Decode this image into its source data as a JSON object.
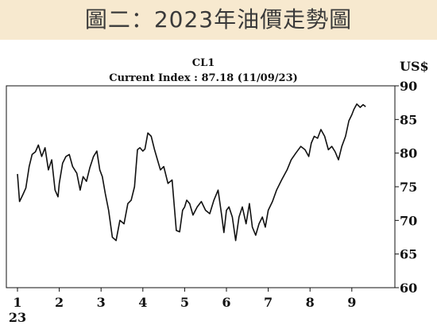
{
  "banner": {
    "title": "圖二：2023年油價走勢圖",
    "background": "#f7e9cf"
  },
  "chart_data": {
    "type": "line",
    "title": "CL1",
    "subtitle": "Current Index : 87.18 (11/09/23)",
    "ylabel": "US$",
    "xlabel": "",
    "ylim": [
      60,
      90
    ],
    "yticks": [
      60,
      65,
      70,
      75,
      80,
      85,
      90
    ],
    "xlim": [
      1,
      10.33
    ],
    "xticks": [
      "1",
      "2",
      "3",
      "4",
      "5",
      "6",
      "7",
      "8",
      "9"
    ],
    "xtick_sublabel": "23",
    "grid": false,
    "line_color": "#111111",
    "series": [
      {
        "x": [
          1.0,
          1.05,
          1.12,
          1.2,
          1.28,
          1.35,
          1.43,
          1.5,
          1.58,
          1.66,
          1.74,
          1.82,
          1.9,
          1.97,
          2.0,
          2.08,
          2.16,
          2.24,
          2.32,
          2.42,
          2.5,
          2.57,
          2.65,
          2.73,
          2.82,
          2.9,
          2.97,
          3.03,
          3.1,
          3.18,
          3.27,
          3.36,
          3.45,
          3.55,
          3.64,
          3.72,
          3.8,
          3.87,
          3.93,
          4.0,
          4.05,
          4.12,
          4.2,
          4.28,
          4.35,
          4.42,
          4.5,
          4.6,
          4.7,
          4.8,
          4.88,
          4.95,
          5.0,
          5.05,
          5.12,
          5.2,
          5.3,
          5.4,
          5.5,
          5.6,
          5.7,
          5.8,
          5.88,
          5.94,
          6.0,
          6.06,
          6.14,
          6.22,
          6.3,
          6.38,
          6.47,
          6.55,
          6.62,
          6.7,
          6.78,
          6.86,
          6.93,
          7.0,
          7.1,
          7.2,
          7.32,
          7.45,
          7.55,
          7.66,
          7.78,
          7.88,
          7.97,
          8.03,
          8.1,
          8.18,
          8.26,
          8.35,
          8.44,
          8.52,
          8.6,
          8.68,
          8.76,
          8.85,
          8.93,
          9.0,
          9.05,
          9.12,
          9.2,
          9.27,
          9.33
        ],
        "values": [
          76.9,
          72.8,
          73.7,
          74.8,
          78.0,
          79.8,
          80.2,
          81.2,
          79.5,
          80.8,
          77.5,
          79.0,
          74.5,
          73.5,
          75.5,
          78.5,
          79.5,
          79.8,
          78.0,
          77.0,
          74.5,
          76.5,
          75.8,
          77.8,
          79.5,
          80.3,
          77.5,
          76.5,
          74.0,
          71.5,
          67.5,
          67.0,
          70.0,
          69.5,
          72.5,
          73.0,
          75.0,
          80.5,
          80.8,
          80.3,
          80.6,
          83.0,
          82.5,
          80.5,
          79.0,
          77.5,
          78.0,
          75.5,
          76.0,
          68.5,
          68.3,
          71.5,
          72.0,
          73.0,
          72.5,
          70.8,
          72.0,
          72.8,
          71.5,
          71.0,
          73.0,
          74.5,
          71.0,
          68.2,
          71.5,
          72.0,
          70.5,
          67.0,
          70.5,
          72.0,
          69.5,
          72.5,
          69.0,
          67.8,
          69.5,
          70.5,
          69.0,
          71.5,
          72.8,
          74.5,
          76.0,
          77.5,
          79.0,
          80.0,
          81.0,
          80.5,
          79.5,
          81.5,
          82.5,
          82.2,
          83.5,
          82.5,
          80.5,
          81.0,
          80.2,
          79.0,
          81.0,
          82.5,
          84.8,
          85.7,
          86.5,
          87.3,
          86.8,
          87.2,
          86.9
        ]
      }
    ]
  }
}
